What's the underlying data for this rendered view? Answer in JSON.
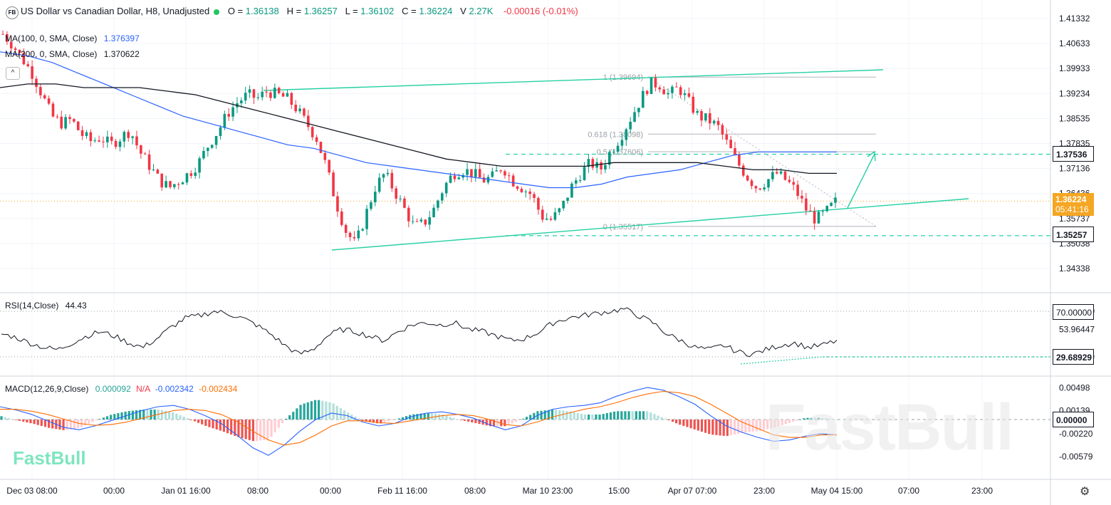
{
  "header": {
    "logo_text": "FB",
    "title": "US Dollar vs Canadian Dollar, H8, Unadjusted",
    "o_label": "O =",
    "o_value": "1.36138",
    "h_label": "H =",
    "h_value": "1.36257",
    "l_label": "L =",
    "l_value": "1.36102",
    "c_label": "C =",
    "c_value": "1.36224",
    "v_label": "V",
    "v_value": "2.27K",
    "change": "-0.00016 (-0.01%)"
  },
  "indicators": {
    "ma100_label": "MA(100, 0, SMA, Close)",
    "ma100_value": "1.376397",
    "ma200_label": "MA(200, 0, SMA, Close)",
    "ma200_value": "1.370622",
    "rsi_label": "RSI(14,Close)",
    "rsi_value": "44.43",
    "macd_label": "MACD(12,26,9,Close)",
    "macd_hist": "0.000092",
    "macd_na": "N/A",
    "macd_line": "-0.002342",
    "macd_signal": "-0.002434"
  },
  "price_tags": {
    "level_1": "1.37536",
    "current": "1.36224",
    "countdown": "05:41:16",
    "level_2": "1.35257",
    "rsi_70": "70.00000",
    "rsi_mid": "53.96447",
    "rsi_level": "29.68929",
    "macd_zero": "0.00000"
  },
  "fib_labels": [
    "1 (1.39694)",
    "0.618 (1.38098)",
    "0.5 (1.37606)",
    "0 (1.35517)"
  ],
  "watermark": {
    "small": "FastBull",
    "big": "FastBull"
  },
  "colors": {
    "up": "#089981",
    "down": "#f23645",
    "ma100": "#2962ff",
    "ma200": "#131722",
    "trend": "#26d0a5",
    "macd": "#2962ff",
    "signal": "#ff6d00"
  },
  "chart_data": {
    "type": "candlestick",
    "price_axis": [
      "1.41332",
      "1.40633",
      "1.39933",
      "1.39234",
      "1.38535",
      "1.37835",
      "1.37136",
      "1.36436",
      "1.35737",
      "1.35038",
      "1.34338"
    ],
    "time_axis": [
      "Dec 03 08:00",
      "00:00",
      "Jan 01 16:00",
      "08:00",
      "00:00",
      "Feb 11 16:00",
      "08:00",
      "Mar 10 23:00",
      "15:00",
      "Apr 07 07:00",
      "23:00",
      "May 04 15:00",
      "07:00",
      "23:00"
    ],
    "rsi_axis": [
      "70.00000",
      "53.96447",
      "29.68929"
    ],
    "macd_axis": [
      "0.00498",
      "0.00139",
      "0.00000",
      "-0.00220",
      "-0.00579"
    ],
    "close_path": [
      1.409,
      1.406,
      1.402,
      1.398,
      1.392,
      1.386,
      1.384,
      1.385,
      1.381,
      1.379,
      1.38,
      1.378,
      1.38,
      1.382,
      1.376,
      1.372,
      1.368,
      1.366,
      1.368,
      1.37,
      1.373,
      1.378,
      1.382,
      1.387,
      1.39,
      1.392,
      1.391,
      1.393,
      1.392,
      1.391,
      1.388,
      1.384,
      1.38,
      1.372,
      1.362,
      1.354,
      1.35,
      1.358,
      1.366,
      1.37,
      1.365,
      1.36,
      1.355,
      1.356,
      1.36,
      1.366,
      1.37,
      1.371,
      1.37,
      1.368,
      1.369,
      1.372,
      1.368,
      1.366,
      1.364,
      1.358,
      1.357,
      1.36,
      1.366,
      1.37,
      1.373,
      1.371,
      1.376,
      1.38,
      1.385,
      1.39,
      1.395,
      1.395,
      1.392,
      1.394,
      1.39,
      1.386,
      1.385,
      1.383,
      1.378,
      1.373,
      1.369,
      1.366,
      1.368,
      1.37,
      1.368,
      1.365,
      1.36,
      1.357,
      1.359,
      1.362
    ],
    "ma100": [
      1.404,
      1.403,
      1.401,
      1.398,
      1.395,
      1.392,
      1.389,
      1.386,
      1.384,
      1.382,
      1.38,
      1.378,
      1.377,
      1.375,
      1.373,
      1.372,
      1.371,
      1.37,
      1.369,
      1.368,
      1.367,
      1.366,
      1.366,
      1.367,
      1.369,
      1.37,
      1.371,
      1.373,
      1.375,
      1.376,
      1.376,
      1.376,
      1.376
    ],
    "ma200": [
      1.394,
      1.395,
      1.395,
      1.394,
      1.394,
      1.394,
      1.393,
      1.392,
      1.39,
      1.388,
      1.386,
      1.384,
      1.382,
      1.38,
      1.378,
      1.376,
      1.374,
      1.373,
      1.372,
      1.372,
      1.372,
      1.372,
      1.373,
      1.373,
      1.373,
      1.373,
      1.372,
      1.371,
      1.371,
      1.37,
      1.37
    ],
    "rsi": [
      50,
      47,
      42,
      38,
      36,
      42,
      48,
      52,
      48,
      42,
      38,
      46,
      56,
      64,
      66,
      70,
      68,
      64,
      58,
      50,
      40,
      32,
      36,
      48,
      54,
      52,
      48,
      44,
      52,
      58,
      60,
      58,
      60,
      54,
      52,
      48,
      44,
      46,
      52,
      60,
      64,
      66,
      68,
      70,
      72,
      66,
      60,
      50,
      44,
      38,
      36,
      40,
      34,
      32,
      36,
      40,
      42,
      38,
      40,
      44
    ],
    "macd_line": [
      0.002,
      0.0015,
      0.0008,
      -0.0002,
      -0.0012,
      -0.0016,
      -0.001,
      -0.0002,
      0.0006,
      0.0014,
      0.002,
      0.0022,
      0.0016,
      0.0006,
      -0.0006,
      -0.0024,
      -0.0044,
      -0.0056,
      -0.004,
      -0.0018,
      0.0,
      0.001,
      0.0006,
      -0.0004,
      -0.001,
      -0.0006,
      0.0004,
      0.001,
      0.0012,
      0.0008,
      0.0002,
      -0.0008,
      -0.0016,
      -0.001,
      0.0006,
      0.0016,
      0.002,
      0.0022,
      0.0026,
      0.0036,
      0.0044,
      0.005,
      0.0046,
      0.0036,
      0.0024,
      0.0006,
      -0.001,
      -0.002,
      -0.0028,
      -0.0034,
      -0.0032,
      -0.0026,
      -0.0022,
      -0.0024
    ],
    "macd_signal": [
      0.0016,
      0.0016,
      0.0013,
      0.0008,
      0.0001,
      -0.0006,
      -0.0009,
      -0.0008,
      -0.0004,
      0.0002,
      0.0008,
      0.0014,
      0.0016,
      0.0014,
      0.0008,
      -0.0003,
      -0.0018,
      -0.0032,
      -0.004,
      -0.0036,
      -0.0024,
      -0.001,
      -0.0002,
      -0.0002,
      -0.0005,
      -0.0006,
      -0.0002,
      0.0002,
      0.0006,
      0.0008,
      0.0006,
      0.0,
      -0.0008,
      -0.001,
      -0.0004,
      0.0004,
      0.001,
      0.0016,
      0.002,
      0.0026,
      0.0034,
      0.004,
      0.0044,
      0.0042,
      0.0036,
      0.0024,
      0.001,
      -0.0004,
      -0.0014,
      -0.0024,
      -0.0028,
      -0.0028,
      -0.0024,
      -0.0024
    ]
  }
}
